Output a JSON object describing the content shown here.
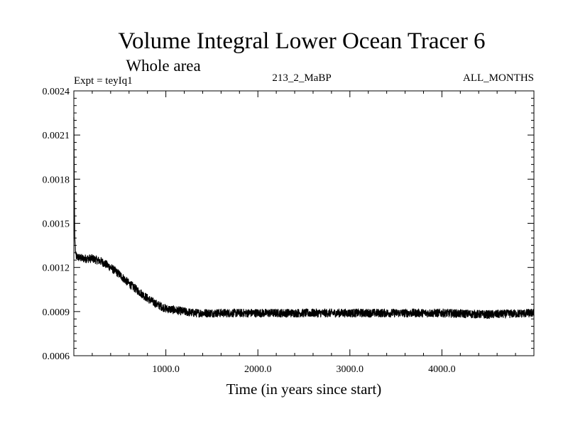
{
  "chart_data": {
    "type": "line",
    "title": "Volume Integral Lower Ocean Tracer 6",
    "subtitle": "Whole area",
    "expt_label": "Expt = teyIq1",
    "run_label": "213_2_MaBP",
    "period_label": "ALL_MONTHS",
    "xlabel": "Time (in years since start)",
    "ylabel": "",
    "xlim": [
      0,
      5000
    ],
    "ylim": [
      0.0006,
      0.0024
    ],
    "x_ticks": [
      {
        "value": 1000,
        "label": "1000.0"
      },
      {
        "value": 2000,
        "label": "2000.0"
      },
      {
        "value": 3000,
        "label": "3000.0"
      },
      {
        "value": 4000,
        "label": "4000.0"
      }
    ],
    "y_ticks": [
      {
        "value": 0.0006,
        "label": "0.0006"
      },
      {
        "value": 0.0009,
        "label": "0.0009"
      },
      {
        "value": 0.0012,
        "label": "0.0012"
      },
      {
        "value": 0.0015,
        "label": "0.0015"
      },
      {
        "value": 0.0018,
        "label": "0.0018"
      },
      {
        "value": 0.0021,
        "label": "0.0021"
      },
      {
        "value": 0.0024,
        "label": "0.0024"
      }
    ],
    "series": [
      {
        "name": "Volume Integral Lower Ocean Tracer 6",
        "noise_amplitude": 2.8e-05,
        "x": [
          0,
          5,
          10,
          20,
          40,
          100,
          200,
          300,
          400,
          500,
          600,
          700,
          800,
          900,
          1000,
          1100,
          1200,
          1300,
          1500,
          2000,
          2500,
          3000,
          3500,
          4000,
          4500,
          5000
        ],
        "values": [
          0.00222,
          0.0017,
          0.0014,
          0.00128,
          0.00127,
          0.00126,
          0.00126,
          0.00124,
          0.0012,
          0.00115,
          0.00109,
          0.00104,
          0.00099,
          0.00095,
          0.00092,
          0.00091,
          0.0009,
          0.00089,
          0.00089,
          0.00089,
          0.00089,
          0.00089,
          0.00089,
          0.00089,
          0.00088,
          0.00089
        ]
      }
    ]
  }
}
